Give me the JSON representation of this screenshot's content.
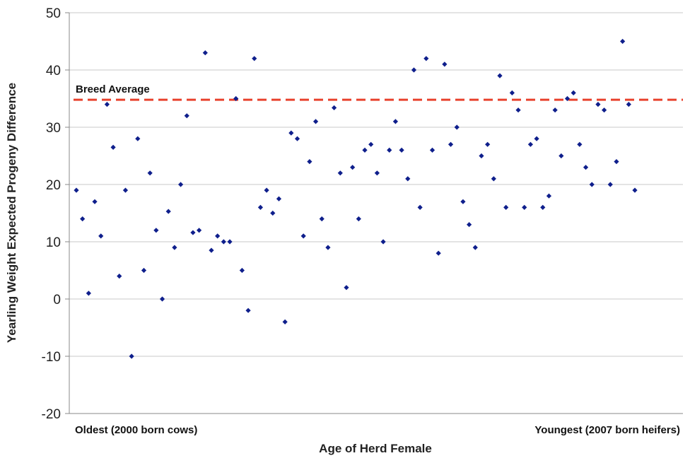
{
  "chart_data": {
    "type": "scatter",
    "xlabel": "Age of Herd Female",
    "ylabel": "Yearling Weight Expected Progeny Difference",
    "x_start_label": "Oldest (2000 born cows)",
    "x_end_label": "Youngest (2007 born heifers)",
    "ylim": [
      -20,
      50
    ],
    "yticks": [
      -20,
      -10,
      0,
      10,
      20,
      30,
      40,
      50
    ],
    "grid": true,
    "reference_line": {
      "label": "Breed Average",
      "value": 34.8,
      "color": "#e8412c"
    },
    "marker_color": "#0f1f8c",
    "series": [
      {
        "values": [
          19,
          14,
          1,
          17,
          11,
          34,
          26.5,
          4,
          19,
          -10,
          28,
          5,
          22,
          12,
          0,
          15.3,
          9,
          20,
          32,
          11.6,
          12,
          43,
          8.5,
          11,
          10,
          10,
          35,
          5,
          -2,
          42,
          16,
          19,
          15,
          17.5,
          -4,
          29,
          28,
          11,
          24,
          31,
          14,
          9,
          33.4,
          22,
          2,
          23,
          14,
          26,
          27,
          22,
          10,
          26,
          31,
          26,
          21,
          40,
          16,
          42,
          26,
          8,
          41,
          27,
          30,
          17,
          13,
          9,
          25,
          27,
          21,
          39,
          16,
          36,
          33,
          16,
          27,
          28,
          16,
          18,
          33,
          25,
          35,
          36,
          27,
          23,
          20,
          34,
          33,
          20,
          24,
          45,
          34,
          19
        ]
      }
    ]
  }
}
